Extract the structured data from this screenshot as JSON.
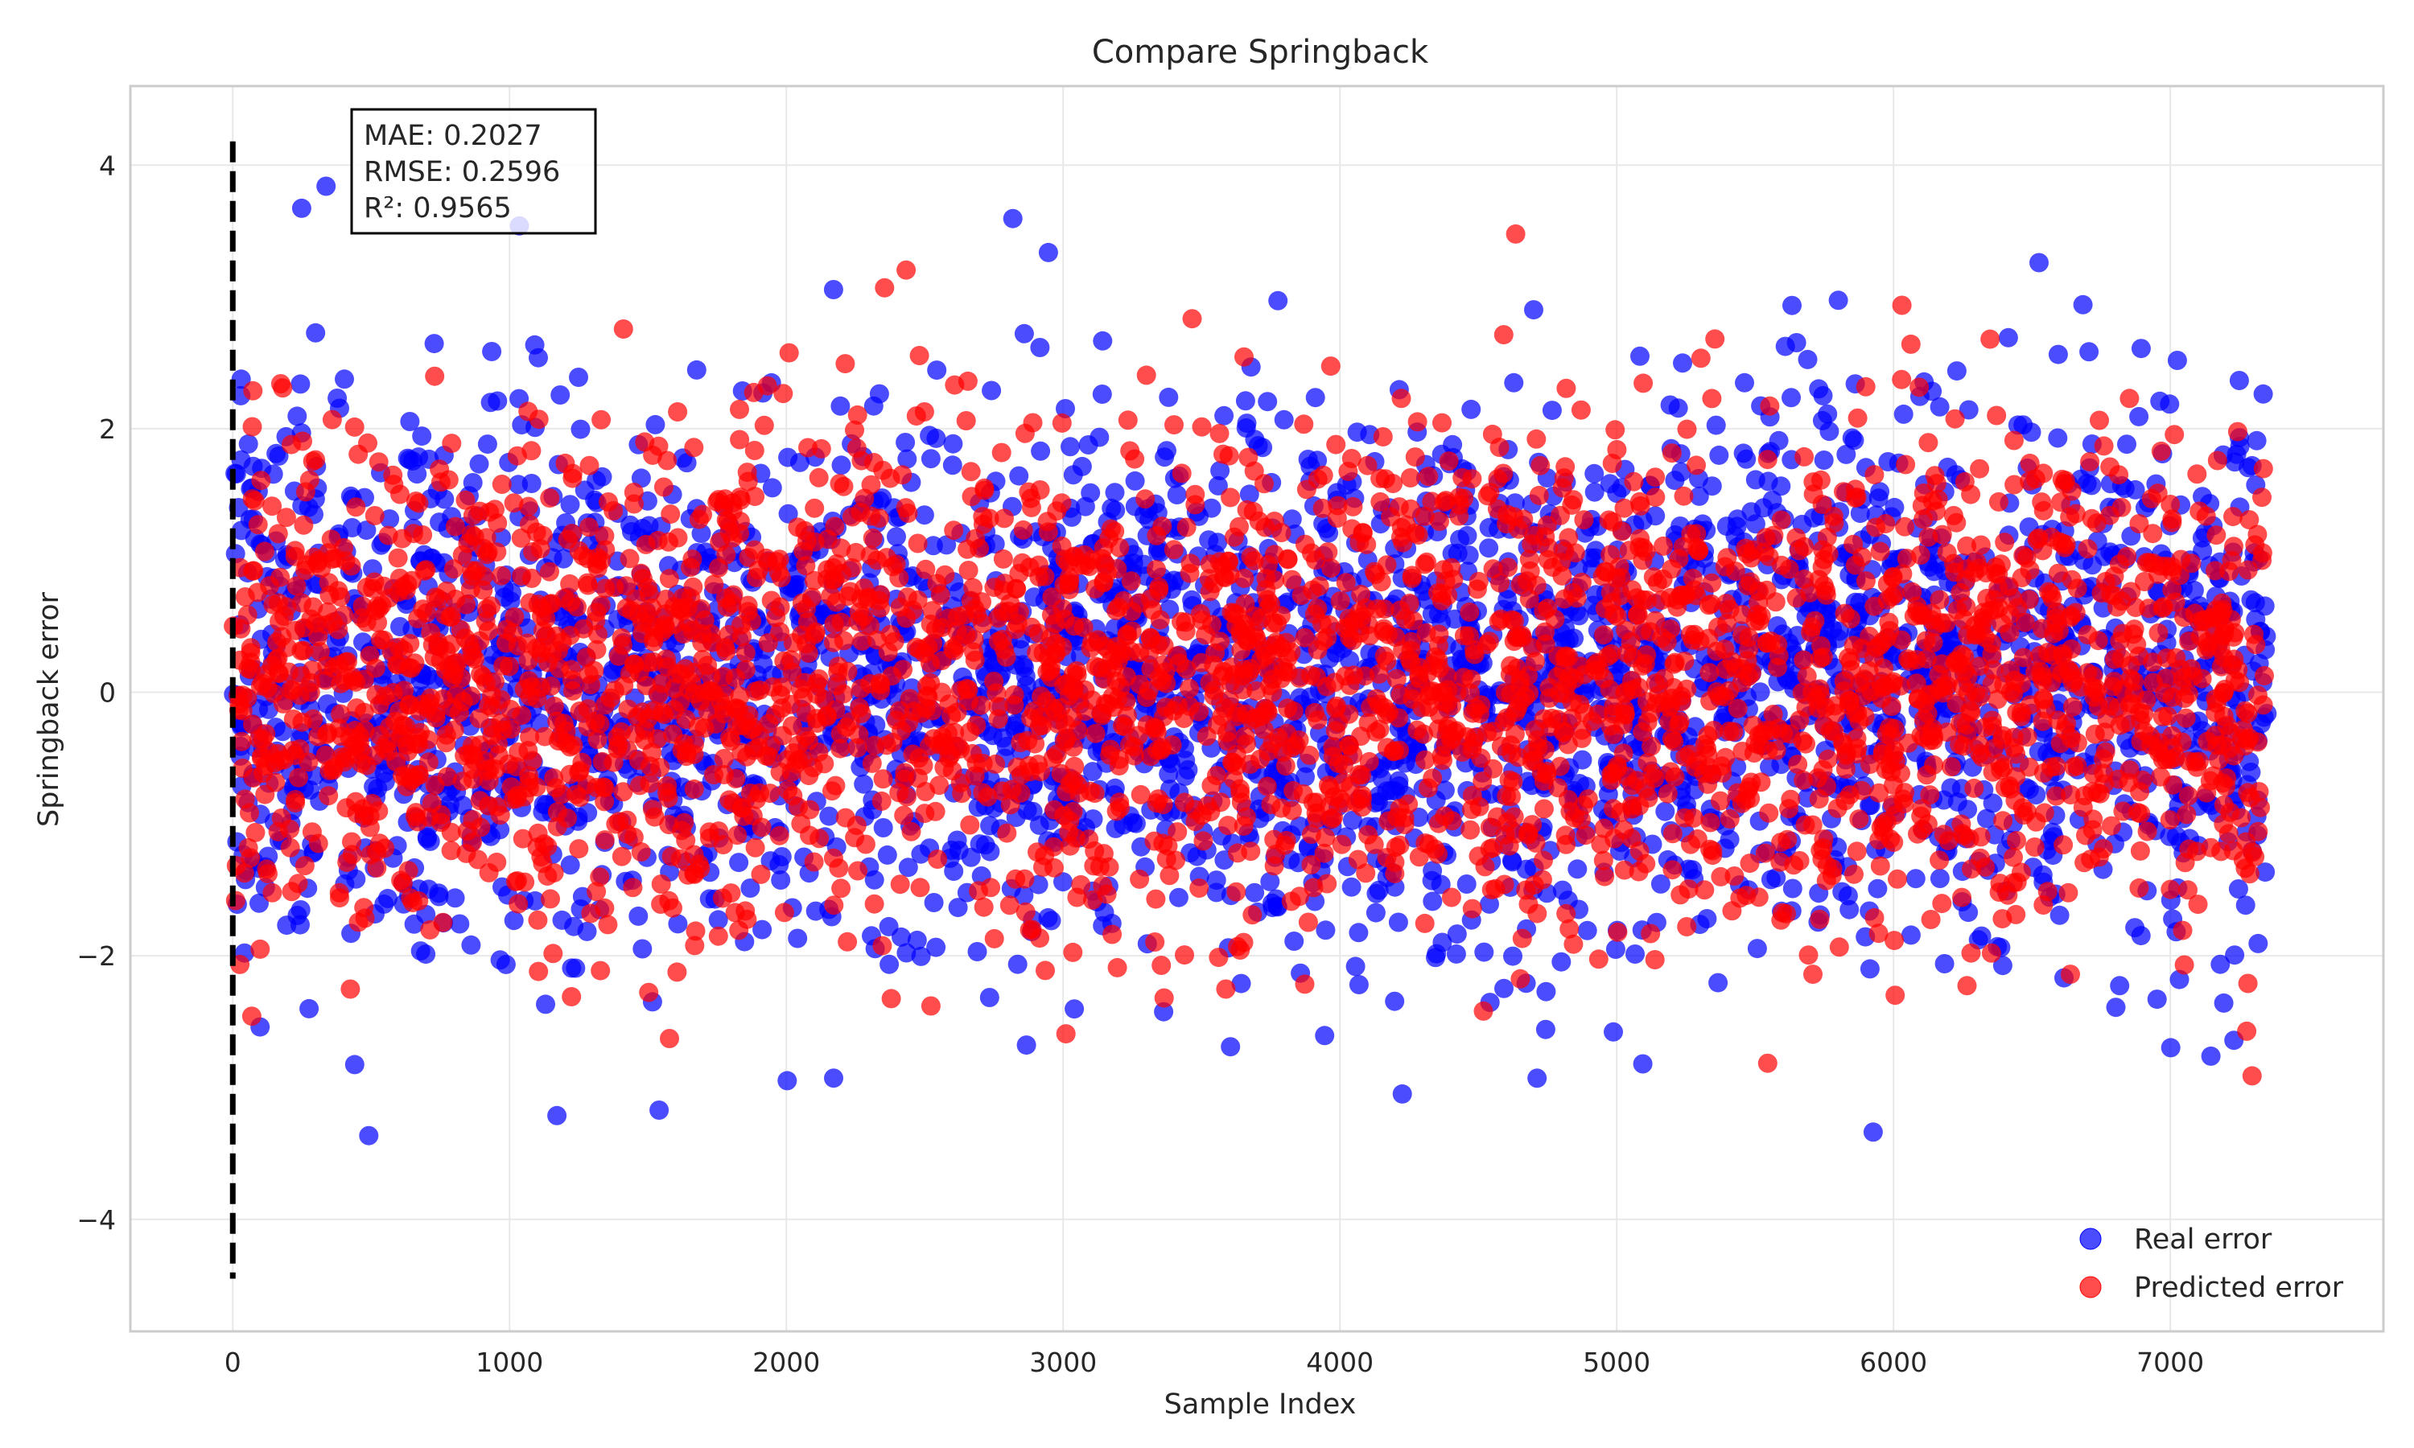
{
  "chart_data": {
    "type": "scatter",
    "title": "Compare Springback",
    "xlabel": "Sample Index",
    "ylabel": "Springback error",
    "xlim": [
      -370,
      7770
    ],
    "ylim": [
      -4.85,
      4.6
    ],
    "xticks": [
      0,
      1000,
      2000,
      3000,
      4000,
      5000,
      6000,
      7000
    ],
    "yticks": [
      -4,
      -2,
      0,
      2,
      4
    ],
    "grid": true,
    "legend_position": "bottom-right",
    "n_samples": 7350,
    "series": [
      {
        "name": "Real error",
        "color": "#0000ff",
        "opacity": 0.7,
        "distribution": {
          "mean": 0.1,
          "std": 1.0,
          "min": -4.45,
          "max": 4.18
        }
      },
      {
        "name": "Predicted error",
        "color": "#ff0000",
        "opacity": 0.7,
        "distribution": {
          "mean": 0.1,
          "std": 0.92,
          "min": -3.92,
          "max": 3.5
        }
      }
    ],
    "annotations": {
      "stats_box": [
        "MAE: 0.2027",
        "RMSE: 0.2596",
        "R²: 0.9565"
      ],
      "vertical_line": {
        "x": 0,
        "y_range": [
          -4.45,
          4.18
        ],
        "style": "dashed",
        "color": "#000000"
      }
    }
  }
}
